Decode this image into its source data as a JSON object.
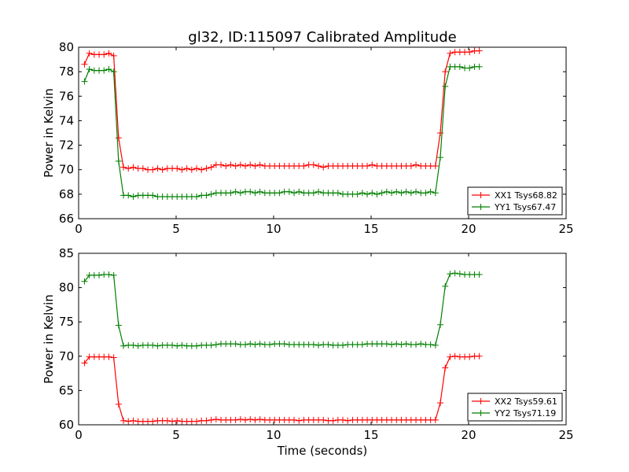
{
  "figure": {
    "title": "gl32, ID:115097 Calibrated Amplitude"
  },
  "chart_data": [
    {
      "type": "line",
      "title": "gl32, ID:115097 Calibrated Amplitude",
      "xlabel": "",
      "ylabel": "Power in Kelvin",
      "xlim": [
        0,
        25
      ],
      "ylim": [
        66,
        80
      ],
      "xticks": [
        0,
        5,
        10,
        15,
        20,
        25
      ],
      "yticks": [
        66,
        68,
        70,
        72,
        74,
        76,
        78,
        80
      ],
      "grid": false,
      "legend_position": "lower-right",
      "x": [
        0.3,
        0.55,
        0.8,
        1.05,
        1.3,
        1.55,
        1.8,
        2.05,
        2.3,
        2.55,
        2.8,
        3.05,
        3.3,
        3.55,
        3.8,
        4.05,
        4.3,
        4.55,
        4.8,
        5.05,
        5.3,
        5.55,
        5.8,
        6.05,
        6.3,
        6.55,
        6.8,
        7.05,
        7.3,
        7.55,
        7.8,
        8.05,
        8.3,
        8.55,
        8.8,
        9.05,
        9.3,
        9.55,
        9.8,
        10.05,
        10.3,
        10.55,
        10.8,
        11.05,
        11.3,
        11.55,
        11.8,
        12.05,
        12.3,
        12.55,
        12.8,
        13.05,
        13.3,
        13.55,
        13.8,
        14.05,
        14.3,
        14.55,
        14.8,
        15.05,
        15.3,
        15.55,
        15.8,
        16.05,
        16.3,
        16.55,
        16.8,
        17.05,
        17.3,
        17.55,
        17.8,
        18.05,
        18.3,
        18.55,
        18.8,
        19.05,
        19.3,
        19.55,
        19.8,
        20.05,
        20.3,
        20.55
      ],
      "series": [
        {
          "name": "XX1 Tsys68.82",
          "color": "#ff0000",
          "values": [
            78.6,
            79.5,
            79.4,
            79.4,
            79.4,
            79.5,
            79.3,
            72.6,
            70.2,
            70.1,
            70.2,
            70.1,
            70.1,
            70.0,
            70.0,
            70.1,
            70.0,
            70.1,
            70.1,
            70.1,
            70.0,
            70.1,
            70.0,
            70.1,
            70.0,
            70.1,
            70.2,
            70.4,
            70.4,
            70.3,
            70.4,
            70.3,
            70.4,
            70.3,
            70.4,
            70.3,
            70.4,
            70.3,
            70.3,
            70.3,
            70.3,
            70.3,
            70.3,
            70.3,
            70.3,
            70.3,
            70.4,
            70.4,
            70.3,
            70.2,
            70.3,
            70.3,
            70.3,
            70.3,
            70.3,
            70.3,
            70.3,
            70.3,
            70.3,
            70.4,
            70.3,
            70.3,
            70.3,
            70.3,
            70.3,
            70.3,
            70.3,
            70.3,
            70.4,
            70.3,
            70.3,
            70.3,
            70.3,
            73.0,
            78.0,
            79.5,
            79.6,
            79.6,
            79.6,
            79.6,
            79.7,
            79.7
          ]
        },
        {
          "name": "YY1 Tsys67.47",
          "color": "#008000",
          "values": [
            77.2,
            78.2,
            78.1,
            78.1,
            78.1,
            78.2,
            78.0,
            70.7,
            67.9,
            67.9,
            67.8,
            67.9,
            67.9,
            67.9,
            67.9,
            67.8,
            67.8,
            67.8,
            67.8,
            67.8,
            67.8,
            67.8,
            67.8,
            67.8,
            67.9,
            67.9,
            68.0,
            68.1,
            68.1,
            68.1,
            68.1,
            68.2,
            68.1,
            68.2,
            68.2,
            68.1,
            68.2,
            68.1,
            68.1,
            68.1,
            68.1,
            68.2,
            68.2,
            68.1,
            68.2,
            68.1,
            68.1,
            68.1,
            68.2,
            68.1,
            68.1,
            68.1,
            68.1,
            68.0,
            68.0,
            68.0,
            68.0,
            68.1,
            68.0,
            68.1,
            68.0,
            68.1,
            68.2,
            68.1,
            68.2,
            68.1,
            68.2,
            68.1,
            68.2,
            68.1,
            68.1,
            68.2,
            68.1,
            71.0,
            76.8,
            78.4,
            78.4,
            78.4,
            78.3,
            78.3,
            78.4,
            78.4
          ]
        }
      ]
    },
    {
      "type": "line",
      "title": "",
      "xlabel": "Time (seconds)",
      "ylabel": "Power in Kelvin",
      "xlim": [
        0,
        25
      ],
      "ylim": [
        60,
        85
      ],
      "xticks": [
        0,
        5,
        10,
        15,
        20,
        25
      ],
      "yticks": [
        60,
        65,
        70,
        75,
        80,
        85
      ],
      "grid": false,
      "legend_position": "lower-right",
      "x": [
        0.3,
        0.55,
        0.8,
        1.05,
        1.3,
        1.55,
        1.8,
        2.05,
        2.3,
        2.55,
        2.8,
        3.05,
        3.3,
        3.55,
        3.8,
        4.05,
        4.3,
        4.55,
        4.8,
        5.05,
        5.3,
        5.55,
        5.8,
        6.05,
        6.3,
        6.55,
        6.8,
        7.05,
        7.3,
        7.55,
        7.8,
        8.05,
        8.3,
        8.55,
        8.8,
        9.05,
        9.3,
        9.55,
        9.8,
        10.05,
        10.3,
        10.55,
        10.8,
        11.05,
        11.3,
        11.55,
        11.8,
        12.05,
        12.3,
        12.55,
        12.8,
        13.05,
        13.3,
        13.55,
        13.8,
        14.05,
        14.3,
        14.55,
        14.8,
        15.05,
        15.3,
        15.55,
        15.8,
        16.05,
        16.3,
        16.55,
        16.8,
        17.05,
        17.3,
        17.55,
        17.8,
        18.05,
        18.3,
        18.55,
        18.8,
        19.05,
        19.3,
        19.55,
        19.8,
        20.05,
        20.3,
        20.55
      ],
      "series": [
        {
          "name": "XX2 Tsys59.61",
          "color": "#ff0000",
          "values": [
            69.0,
            69.9,
            69.9,
            69.9,
            69.9,
            69.9,
            69.8,
            63.0,
            60.6,
            60.5,
            60.6,
            60.5,
            60.5,
            60.5,
            60.5,
            60.6,
            60.6,
            60.6,
            60.5,
            60.6,
            60.5,
            60.5,
            60.5,
            60.5,
            60.6,
            60.6,
            60.7,
            60.8,
            60.7,
            60.7,
            60.7,
            60.7,
            60.8,
            60.7,
            60.8,
            60.7,
            60.8,
            60.7,
            60.7,
            60.7,
            60.7,
            60.7,
            60.7,
            60.7,
            60.6,
            60.7,
            60.7,
            60.7,
            60.7,
            60.7,
            60.6,
            60.6,
            60.7,
            60.7,
            60.6,
            60.7,
            60.7,
            60.7,
            60.7,
            60.7,
            60.7,
            60.7,
            60.7,
            60.7,
            60.7,
            60.7,
            60.7,
            60.7,
            60.7,
            60.7,
            60.7,
            60.7,
            60.7,
            63.2,
            68.3,
            69.9,
            70.0,
            69.9,
            69.9,
            69.9,
            70.0,
            70.0
          ]
        },
        {
          "name": "YY2 Tsys71.19",
          "color": "#008000",
          "values": [
            80.9,
            81.8,
            81.8,
            81.8,
            81.9,
            81.9,
            81.8,
            74.5,
            71.5,
            71.6,
            71.6,
            71.5,
            71.6,
            71.6,
            71.6,
            71.5,
            71.6,
            71.6,
            71.6,
            71.5,
            71.6,
            71.5,
            71.5,
            71.5,
            71.6,
            71.6,
            71.6,
            71.7,
            71.8,
            71.8,
            71.8,
            71.8,
            71.7,
            71.7,
            71.8,
            71.7,
            71.8,
            71.7,
            71.7,
            71.8,
            71.8,
            71.8,
            71.7,
            71.7,
            71.7,
            71.7,
            71.7,
            71.7,
            71.6,
            71.7,
            71.7,
            71.6,
            71.6,
            71.6,
            71.7,
            71.7,
            71.7,
            71.7,
            71.8,
            71.8,
            71.8,
            71.8,
            71.8,
            71.7,
            71.8,
            71.7,
            71.8,
            71.7,
            71.7,
            71.8,
            71.7,
            71.7,
            71.6,
            74.6,
            80.2,
            82.0,
            82.1,
            82.0,
            81.9,
            81.9,
            81.9,
            81.9
          ]
        }
      ]
    }
  ]
}
